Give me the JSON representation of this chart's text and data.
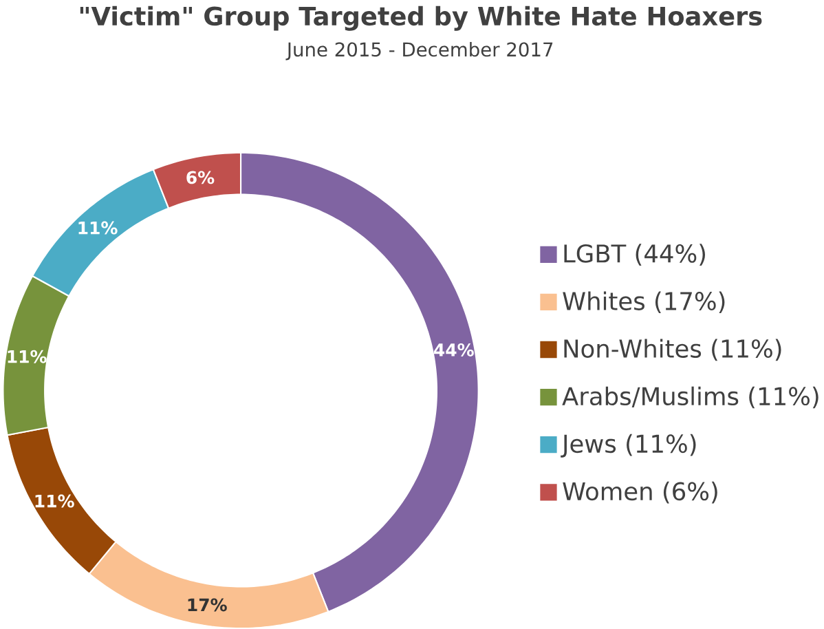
{
  "chart_data": {
    "type": "donut",
    "title": "\"Victim\" Group Targeted by **White** Hate Hoaxers",
    "subtitle": "June 2015  - December 2017",
    "categories": [
      "LGBT (44%)",
      "Whites (17%)",
      "Non-Whites (11%)",
      "Arabs/Muslims (11%)",
      "Jews (11%)",
      "Women (6%)"
    ],
    "values": [
      44,
      17,
      11,
      11,
      11,
      6
    ],
    "value_labels": [
      "44%",
      "17%",
      "11%",
      "11%",
      "11%",
      "6%"
    ],
    "colors": [
      "#8064a2",
      "#fac090",
      "#984807",
      "#77933c",
      "#4bacc6",
      "#c0504d"
    ],
    "legend": "right"
  }
}
